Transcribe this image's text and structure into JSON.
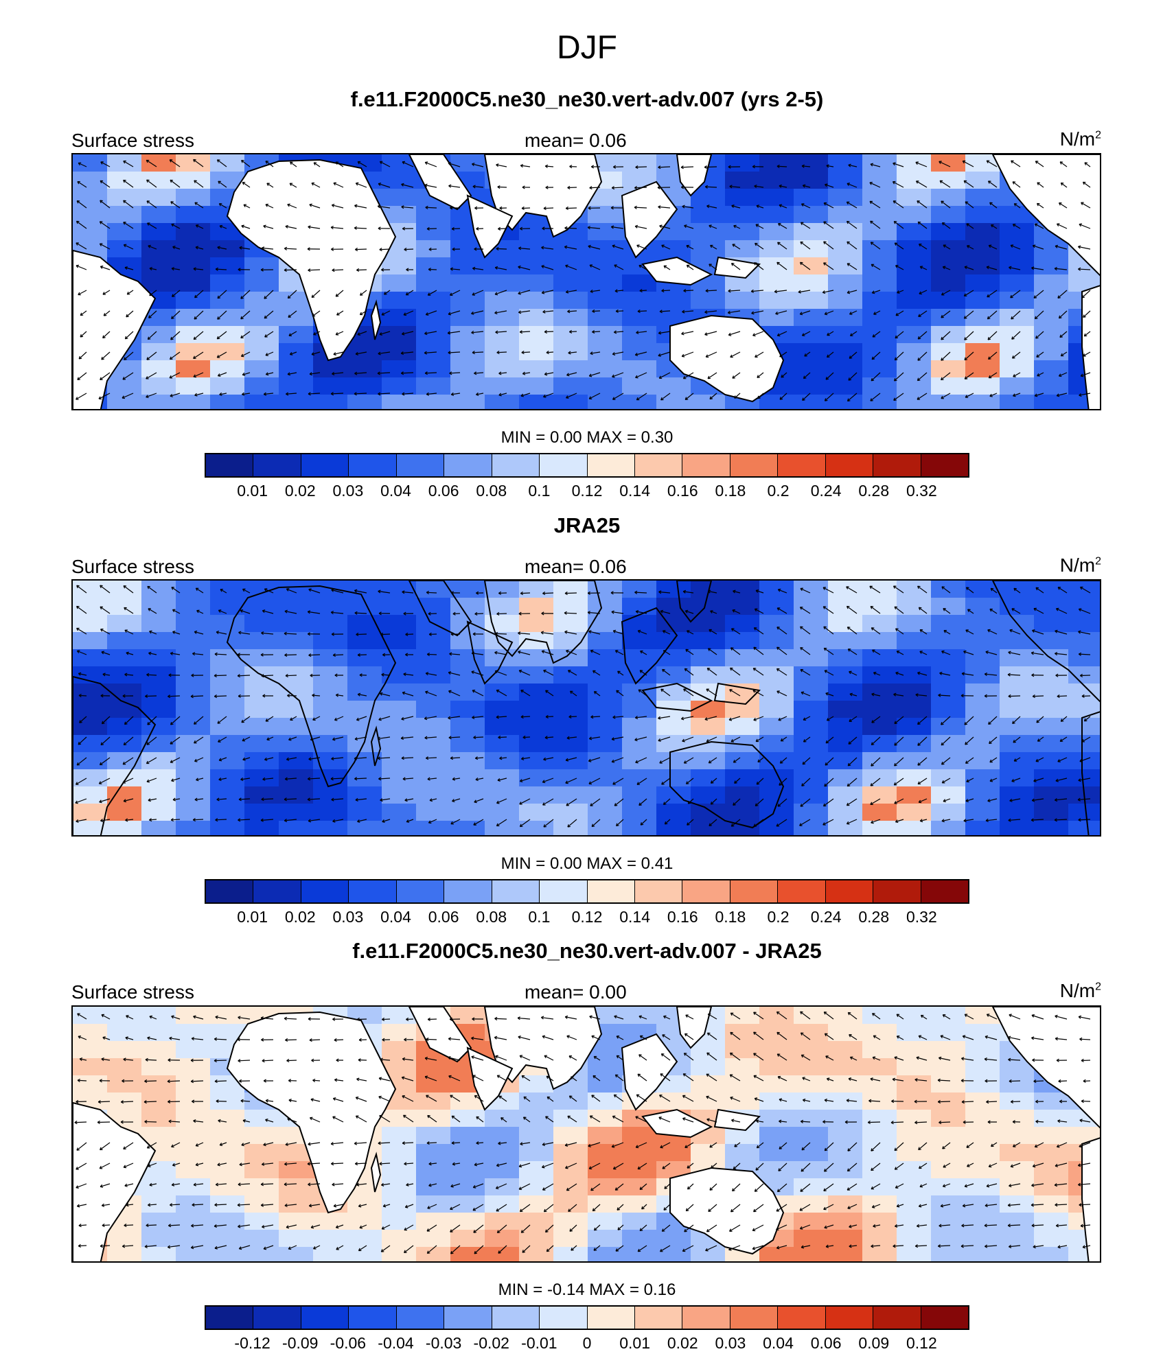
{
  "figure": {
    "title": "DJF"
  },
  "colorbar_colors": [
    "#0b1e8c",
    "#0c2bb4",
    "#0a3ad8",
    "#1f55ea",
    "#3e72ef",
    "#7aa1f6",
    "#aec8fa",
    "#d9e8fd",
    "#fdebd9",
    "#fcc9ad",
    "#f9a584",
    "#f17d55",
    "#e8512d",
    "#d63114",
    "#b01b0b",
    "#850708"
  ],
  "land_color": "#ffffff",
  "panels": [
    {
      "title": "f.e11.F2000C5.ne30_ne30.vert-adv.007 (yrs 2-5)",
      "variable": "Surface stress",
      "mean": "mean=   0.06",
      "units": "N/m",
      "units_sup": "2",
      "minmax": "MIN =   0.00 MAX =   0.30",
      "ticks": [
        "0.01",
        "0.02",
        "0.03",
        "0.04",
        "0.06",
        "0.08",
        "0.1",
        "0.12",
        "0.14",
        "0.16",
        "0.18",
        "0.2",
        "0.24",
        "0.28",
        "0.32"
      ],
      "land_masked": true
    },
    {
      "title": "JRA25",
      "variable": "Surface stress",
      "mean": "mean=   0.06",
      "units": "N/m",
      "units_sup": "2",
      "minmax": "MIN =   0.00 MAX =   0.41",
      "ticks": [
        "0.01",
        "0.02",
        "0.03",
        "0.04",
        "0.06",
        "0.08",
        "0.1",
        "0.12",
        "0.14",
        "0.16",
        "0.18",
        "0.2",
        "0.24",
        "0.28",
        "0.32"
      ],
      "land_masked": false
    },
    {
      "title": "f.e11.F2000C5.ne30_ne30.vert-adv.007 - JRA25",
      "variable": "Surface stress",
      "mean": "mean=   0.00",
      "units": "N/m",
      "units_sup": "2",
      "minmax": "MIN = -0.14 MAX =   0.16",
      "ticks": [
        "-0.12",
        "-0.09",
        "-0.06",
        "-0.04",
        "-0.03",
        "-0.02",
        "-0.01",
        "0",
        "0.01",
        "0.02",
        "0.03",
        "0.04",
        "0.06",
        "0.09",
        "0.12"
      ],
      "land_masked": true
    }
  ]
}
